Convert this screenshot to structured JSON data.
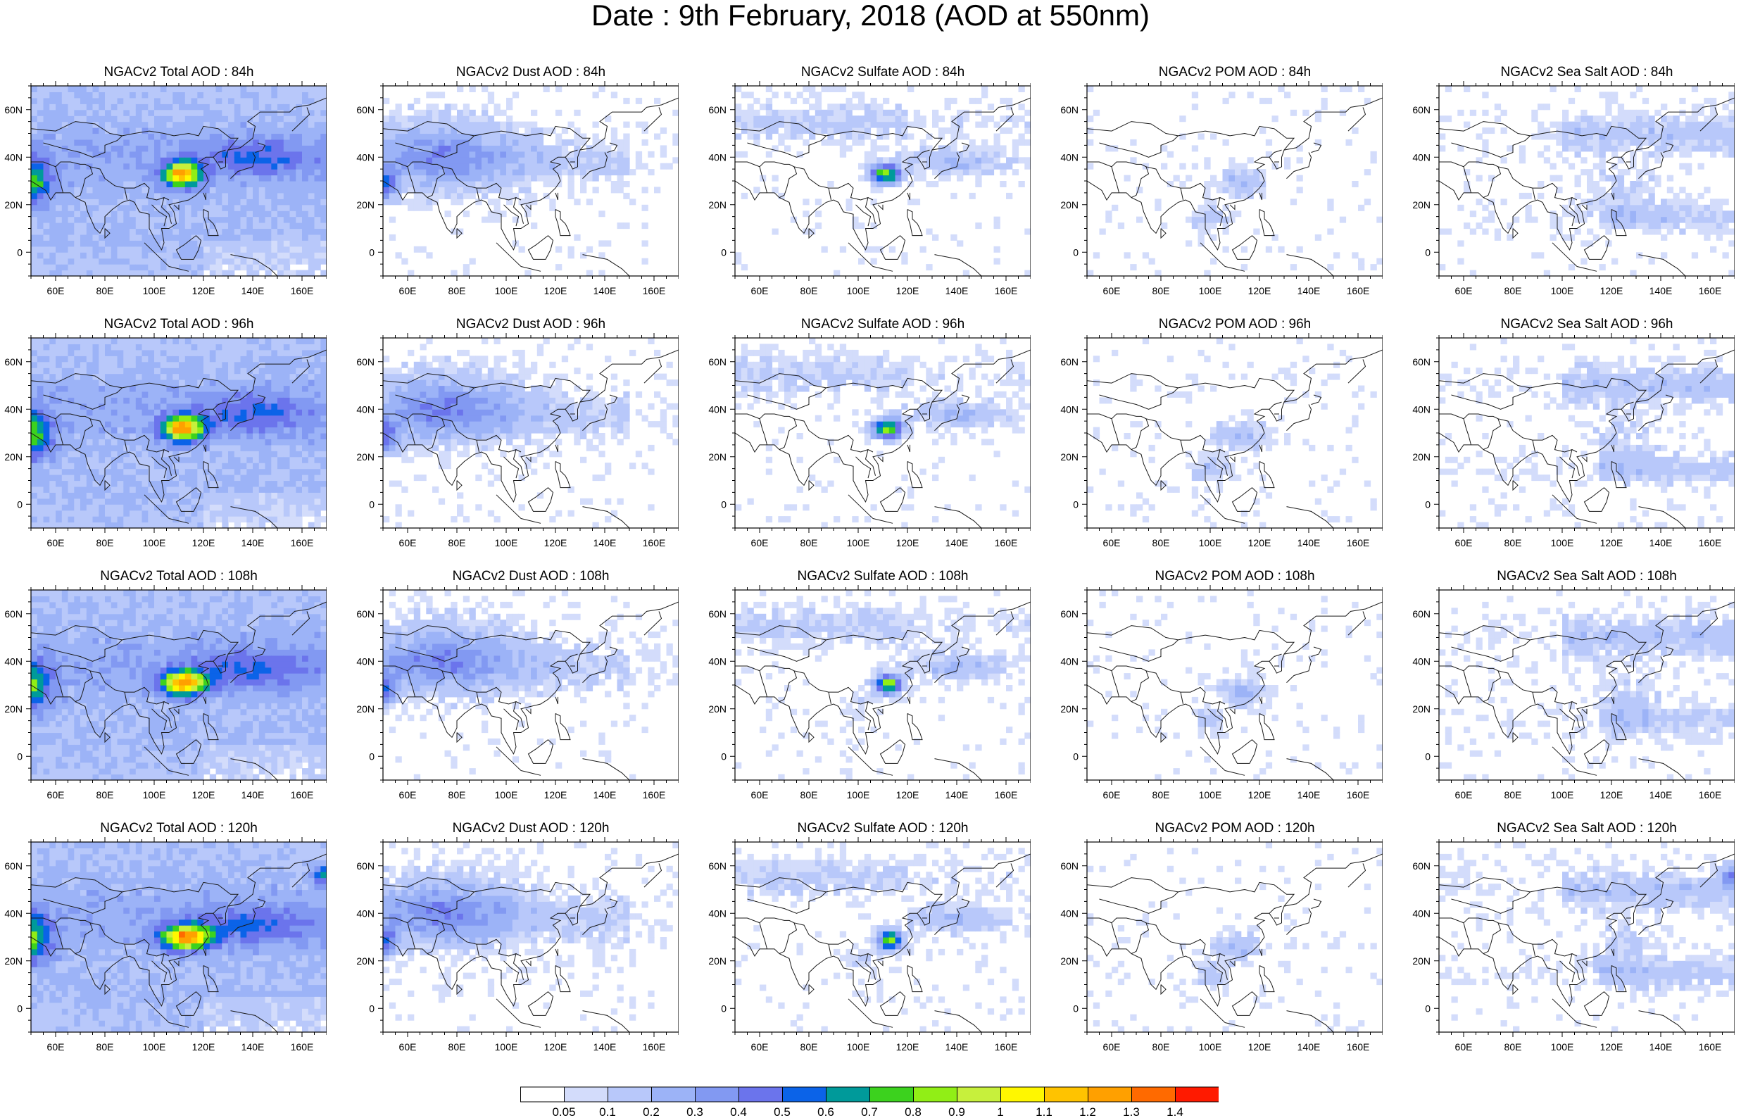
{
  "title": "Date : 9th February, 2018 (AOD at 550nm)",
  "lat_labels": [
    "60N",
    "40N",
    "20N",
    "0"
  ],
  "lon_labels": [
    "60E",
    "80E",
    "100E",
    "120E",
    "140E",
    "160E"
  ],
  "panels": [
    {
      "title": "NGACv2 Total AOD : 84h",
      "species": "total",
      "hour": 84
    },
    {
      "title": "NGACv2 Dust AOD : 84h",
      "species": "dust",
      "hour": 84
    },
    {
      "title": "NGACv2 Sulfate AOD : 84h",
      "species": "sulfate",
      "hour": 84
    },
    {
      "title": "NGACv2 POM AOD : 84h",
      "species": "pom",
      "hour": 84
    },
    {
      "title": "NGACv2 Sea Salt AOD : 84h",
      "species": "seasalt",
      "hour": 84
    },
    {
      "title": "NGACv2 Total AOD : 96h",
      "species": "total",
      "hour": 96
    },
    {
      "title": "NGACv2 Dust AOD : 96h",
      "species": "dust",
      "hour": 96
    },
    {
      "title": "NGACv2 Sulfate AOD : 96h",
      "species": "sulfate",
      "hour": 96
    },
    {
      "title": "NGACv2 POM AOD : 96h",
      "species": "pom",
      "hour": 96
    },
    {
      "title": "NGACv2 Sea Salt AOD : 96h",
      "species": "seasalt",
      "hour": 96
    },
    {
      "title": "NGACv2 Total AOD : 108h",
      "species": "total",
      "hour": 108
    },
    {
      "title": "NGACv2 Dust AOD : 108h",
      "species": "dust",
      "hour": 108
    },
    {
      "title": "NGACv2 Sulfate AOD : 108h",
      "species": "sulfate",
      "hour": 108
    },
    {
      "title": "NGACv2 POM AOD : 108h",
      "species": "pom",
      "hour": 108
    },
    {
      "title": "NGACv2 Sea Salt AOD : 108h",
      "species": "seasalt",
      "hour": 108
    },
    {
      "title": "NGACv2 Total AOD : 120h",
      "species": "total",
      "hour": 120
    },
    {
      "title": "NGACv2 Dust AOD : 120h",
      "species": "dust",
      "hour": 120
    },
    {
      "title": "NGACv2 Sulfate AOD : 120h",
      "species": "sulfate",
      "hour": 120
    },
    {
      "title": "NGACv2 POM AOD : 120h",
      "species": "pom",
      "hour": 120
    },
    {
      "title": "NGACv2 Sea Salt  AOD : 120h",
      "species": "seasalt",
      "hour": 120
    }
  ],
  "colorbar": {
    "labels": [
      "0.05",
      "0.1",
      "0.2",
      "0.3",
      "0.4",
      "0.5",
      "0.6",
      "0.7",
      "0.8",
      "0.9",
      "1",
      "1.1",
      "1.2",
      "1.3",
      "1.4"
    ],
    "colors": [
      "#ffffff",
      "#d3dcfb",
      "#b8c8fa",
      "#9cb3f7",
      "#8299f2",
      "#6b74ec",
      "#0b63e8",
      "#009a9a",
      "#3cd21e",
      "#91ee16",
      "#c7f03c",
      "#fff700",
      "#ffc300",
      "#ffa000",
      "#ff6a00",
      "#ff1a00"
    ]
  },
  "map_extent": {
    "lon": [
      50,
      170
    ],
    "lat": [
      -10,
      70
    ]
  }
}
